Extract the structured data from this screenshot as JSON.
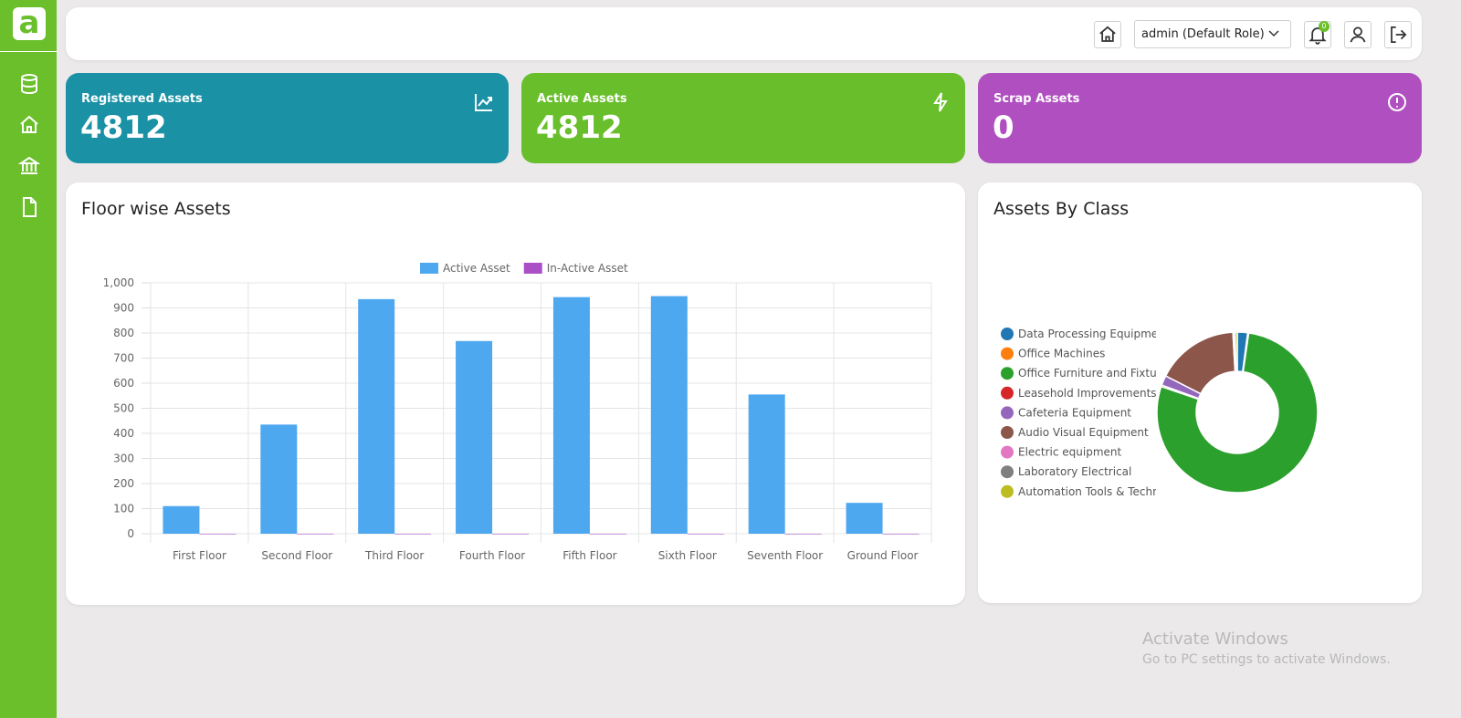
{
  "header": {
    "role": "admin (Default Role)",
    "notification_count": 0
  },
  "cards": [
    {
      "title": "Registered Assets",
      "value": 4812
    },
    {
      "title": "Active Assets",
      "value": 4812
    },
    {
      "title": "Scrap Assets",
      "value": 0
    }
  ],
  "chart_data": [
    {
      "type": "bar",
      "title": "Floor wise Assets",
      "categories": [
        "First Floor",
        "Second Floor",
        "Third Floor",
        "Fourth Floor",
        "Fifth Floor",
        "Sixth Floor",
        "Seventh Floor",
        "Ground Floor"
      ],
      "series": [
        {
          "name": "Active Asset",
          "color": "#4ea8f0",
          "values": [
            110,
            435,
            935,
            768,
            943,
            947,
            555,
            123
          ]
        },
        {
          "name": "In-Active Asset",
          "color": "#ab4fc6",
          "values": [
            0,
            0,
            0,
            0,
            0,
            0,
            0,
            0
          ]
        }
      ],
      "ylim": [
        0,
        1000
      ],
      "yticks": [
        0,
        100,
        200,
        300,
        400,
        500,
        600,
        700,
        800,
        900,
        {
          "value": 1000,
          "label": "1,000"
        }
      ],
      "grid": true,
      "legend": "top"
    },
    {
      "type": "doughnut",
      "title": "Assets By Class",
      "categories": [
        "Data Processing Equipment",
        "Office Machines",
        "Office Furniture and Fixture",
        "Leasehold Improvements",
        "Cafeteria Equipment",
        "Audio Visual Equipment",
        "Electric equipment",
        "Laboratory Electrical",
        "Automation Tools &  Technica"
      ],
      "values": [
        100,
        10,
        3750,
        15,
        95,
        800,
        10,
        10,
        22
      ],
      "colors": [
        "#1f77b4",
        "#ff7f0e",
        "#2ca02c",
        "#d62728",
        "#9467bd",
        "#8c564b",
        "#e377c2",
        "#7f7f7f",
        "#bcbd22"
      ],
      "legend": "left"
    }
  ],
  "watermark": {
    "title": "Activate Windows",
    "subtitle": "Go to PC settings to activate Windows."
  }
}
